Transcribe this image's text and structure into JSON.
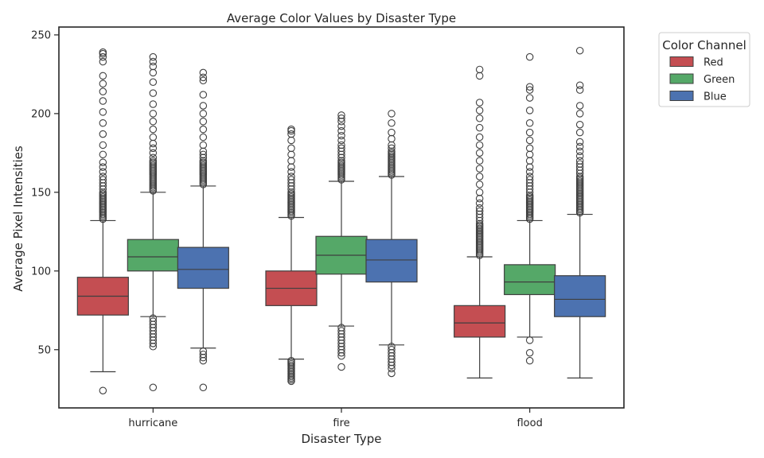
{
  "chart_data": {
    "type": "box",
    "title": "Average Color Values by Disaster Type",
    "xlabel": "Disaster Type",
    "ylabel": "Average Pixel Intensities",
    "ylim": [
      13,
      255
    ],
    "yticks": [
      50,
      100,
      150,
      200,
      250
    ],
    "categories": [
      "hurricane",
      "fire",
      "flood"
    ],
    "legend": {
      "title": "Color Channel",
      "placement": "outside-top-right"
    },
    "grid": false,
    "series": [
      {
        "name": "Red",
        "color": "#c44e52",
        "boxes": [
          {
            "category": "hurricane",
            "whislo": 36,
            "q1": 72,
            "med": 84,
            "q3": 96,
            "whishi": 132,
            "fliers": [
              24,
              133,
              134,
              135,
              136,
              137,
              138,
              139,
              140,
              141,
              142,
              143,
              144,
              145,
              146,
              147,
              148,
              149,
              150,
              152,
              154,
              156,
              158,
              160,
              163,
              166,
              169,
              174,
              180,
              187,
              194,
              201,
              208,
              214,
              219,
              224,
              233,
              236,
              238,
              239
            ]
          },
          {
            "category": "fire",
            "whislo": 44,
            "q1": 78,
            "med": 89,
            "q3": 100,
            "whishi": 134,
            "fliers": [
              30,
              31,
              32,
              33,
              34,
              35,
              36,
              37,
              38,
              39,
              40,
              41,
              42,
              43,
              135,
              136,
              137,
              138,
              139,
              140,
              141,
              142,
              143,
              144,
              145,
              146,
              147,
              148,
              149,
              150,
              152,
              154,
              156,
              158,
              160,
              163,
              166,
              170,
              174,
              178,
              183,
              187,
              189,
              190
            ]
          },
          {
            "category": "flood",
            "whislo": 32,
            "q1": 58,
            "med": 67,
            "q3": 78,
            "whishi": 109,
            "fliers": [
              110,
              111,
              112,
              113,
              114,
              115,
              116,
              117,
              118,
              119,
              120,
              121,
              122,
              123,
              124,
              125,
              126,
              127,
              128,
              129,
              130,
              132,
              134,
              136,
              138,
              140,
              143,
              146,
              150,
              155,
              160,
              165,
              170,
              175,
              180,
              185,
              191,
              197,
              202,
              207,
              224,
              228
            ]
          }
        ]
      },
      {
        "name": "Green",
        "color": "#55a868",
        "boxes": [
          {
            "category": "hurricane",
            "whislo": 71,
            "q1": 100,
            "med": 109,
            "q3": 120,
            "whishi": 150,
            "fliers": [
              26,
              52,
              54,
              56,
              58,
              60,
              62,
              64,
              66,
              68,
              70,
              151,
              152,
              153,
              154,
              155,
              156,
              157,
              158,
              159,
              160,
              161,
              162,
              163,
              164,
              165,
              166,
              167,
              168,
              169,
              170,
              172,
              175,
              178,
              181,
              185,
              190,
              195,
              200,
              206,
              213,
              220,
              226,
              230,
              233,
              236
            ]
          },
          {
            "category": "fire",
            "whislo": 65,
            "q1": 98,
            "med": 110,
            "q3": 122,
            "whishi": 157,
            "fliers": [
              39,
              46,
              48,
              50,
              52,
              54,
              56,
              58,
              60,
              62,
              64,
              158,
              159,
              160,
              161,
              162,
              163,
              164,
              165,
              166,
              167,
              168,
              169,
              170,
              172,
              174,
              176,
              178,
              180,
              183,
              186,
              189,
              192,
              195,
              197,
              199
            ]
          },
          {
            "category": "flood",
            "whislo": 58,
            "q1": 85,
            "med": 93,
            "q3": 104,
            "whishi": 132,
            "fliers": [
              43,
              48,
              56,
              133,
              134,
              135,
              136,
              137,
              138,
              139,
              140,
              141,
              142,
              143,
              144,
              145,
              146,
              147,
              148,
              150,
              152,
              154,
              156,
              158,
              160,
              163,
              166,
              170,
              174,
              178,
              183,
              188,
              194,
              202,
              210,
              215,
              217,
              236
            ]
          }
        ]
      },
      {
        "name": "Blue",
        "color": "#4c72b0",
        "boxes": [
          {
            "category": "hurricane",
            "whislo": 51,
            "q1": 89,
            "med": 101,
            "q3": 115,
            "whishi": 154,
            "fliers": [
              26,
              43,
              45,
              47,
              49,
              155,
              156,
              157,
              158,
              159,
              160,
              161,
              162,
              163,
              164,
              165,
              166,
              167,
              168,
              169,
              170,
              172,
              174,
              176,
              180,
              185,
              190,
              195,
              200,
              205,
              212,
              221,
              223,
              226
            ]
          },
          {
            "category": "fire",
            "whislo": 53,
            "q1": 93,
            "med": 107,
            "q3": 120,
            "whishi": 160,
            "fliers": [
              35,
              38,
              40,
              42,
              44,
              46,
              48,
              50,
              52,
              161,
              162,
              163,
              164,
              165,
              166,
              167,
              168,
              169,
              170,
              171,
              172,
              173,
              174,
              175,
              176,
              178,
              180,
              184,
              188,
              194,
              200
            ]
          },
          {
            "category": "flood",
            "whislo": 32,
            "q1": 71,
            "med": 82,
            "q3": 97,
            "whishi": 136,
            "fliers": [
              137,
              138,
              139,
              140,
              141,
              142,
              143,
              144,
              145,
              146,
              147,
              148,
              149,
              150,
              151,
              152,
              153,
              154,
              155,
              156,
              157,
              158,
              159,
              160,
              162,
              164,
              166,
              168,
              170,
              173,
              176,
              179,
              182,
              188,
              193,
              200,
              205,
              215,
              218,
              240
            ]
          }
        ]
      }
    ]
  }
}
